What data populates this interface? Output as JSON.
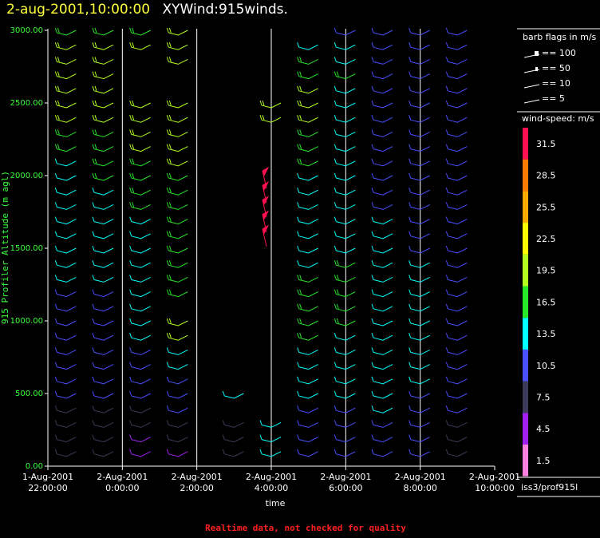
{
  "header": {
    "date": "2-aug-2001,10:00:00",
    "title": "XYWind:915winds."
  },
  "note": "Realtime data, not checked for quality",
  "legend": {
    "barb_title": "barb flags in m/s",
    "barbs": [
      "== 100",
      "== 50",
      "== 10",
      "== 5"
    ],
    "speed_title": "wind-speed: m/s",
    "source": "iss3/prof915l",
    "colorbar": [
      {
        "label": "31.5",
        "color": "#ff1050"
      },
      {
        "label": "28.5",
        "color": "#ff7a00"
      },
      {
        "label": "25.5",
        "color": "#ffaa00"
      },
      {
        "label": "22.5",
        "color": "#ffff00"
      },
      {
        "label": "19.5",
        "color": "#b4ff1e"
      },
      {
        "label": "16.5",
        "color": "#28e628"
      },
      {
        "label": "13.5",
        "color": "#00ffff"
      },
      {
        "label": "10.5",
        "color": "#4a50ff"
      },
      {
        "label": "7.5",
        "color": "#3c3c5a"
      },
      {
        "label": "4.5",
        "color": "#a020f0"
      },
      {
        "label": "1.5",
        "color": "#ff80dc"
      }
    ]
  },
  "chart_data": {
    "type": "scatter",
    "subtype": "wind-barb time-height",
    "xlabel": "time",
    "ylabel": "915 Profiler Altitude (m agl)",
    "ylim": [
      0,
      3000
    ],
    "y_ticks": [
      "0.00",
      "500.00",
      "1000.00",
      "1500.00",
      "2000.00",
      "2500.00",
      "3000.00"
    ],
    "x_ticks": [
      [
        "1-Aug-2001",
        "22:00:00"
      ],
      [
        "2-Aug-2001",
        "0:00:00"
      ],
      [
        "2-Aug-2001",
        "2:00:00"
      ],
      [
        "2-Aug-2001",
        "4:00:00"
      ],
      [
        "2-Aug-2001",
        "6:00:00"
      ],
      [
        "2-Aug-2001",
        "8:00:00"
      ],
      [
        "2-Aug-2001",
        "10:00:00"
      ]
    ],
    "x_hours": [
      22,
      24,
      26,
      28,
      30,
      32,
      34
    ],
    "xlim_hours": [
      22,
      34
    ],
    "grid_x": true,
    "profiles": [
      {
        "hour": 22.5,
        "barbs": [
          [
            3000,
            17
          ],
          [
            2900,
            18
          ],
          [
            2800,
            18
          ],
          [
            2700,
            18
          ],
          [
            2600,
            18
          ],
          [
            2500,
            18
          ],
          [
            2400,
            18
          ],
          [
            2300,
            17
          ],
          [
            2200,
            16
          ],
          [
            2100,
            14
          ],
          [
            2000,
            14
          ],
          [
            1900,
            14
          ],
          [
            1800,
            14
          ],
          [
            1700,
            13
          ],
          [
            1600,
            13
          ],
          [
            1500,
            13
          ],
          [
            1400,
            12
          ],
          [
            1300,
            12
          ],
          [
            1200,
            11
          ],
          [
            1100,
            11
          ],
          [
            1000,
            11
          ],
          [
            900,
            10
          ],
          [
            800,
            10
          ],
          [
            700,
            10
          ],
          [
            600,
            10
          ],
          [
            500,
            10
          ],
          [
            400,
            8
          ],
          [
            300,
            8
          ],
          [
            200,
            8
          ],
          [
            100,
            8
          ]
        ]
      },
      {
        "hour": 23.5,
        "barbs": [
          [
            3000,
            17
          ],
          [
            2900,
            18
          ],
          [
            2800,
            18
          ],
          [
            2700,
            18
          ],
          [
            2600,
            18
          ],
          [
            2500,
            18
          ],
          [
            2400,
            18
          ],
          [
            2300,
            17
          ],
          [
            2200,
            17
          ],
          [
            2100,
            16
          ],
          [
            2000,
            15
          ],
          [
            1900,
            14
          ],
          [
            1800,
            14
          ],
          [
            1700,
            13
          ],
          [
            1600,
            13
          ],
          [
            1500,
            13
          ],
          [
            1400,
            12
          ],
          [
            1300,
            12
          ],
          [
            1200,
            11
          ],
          [
            1100,
            11
          ],
          [
            1000,
            11
          ],
          [
            900,
            10
          ],
          [
            800,
            10
          ],
          [
            700,
            10
          ],
          [
            600,
            10
          ],
          [
            500,
            9
          ],
          [
            400,
            8
          ],
          [
            300,
            8
          ],
          [
            200,
            8
          ],
          [
            100,
            8
          ]
        ]
      },
      {
        "hour": 24.5,
        "barbs": [
          [
            3000,
            17
          ],
          [
            2900,
            18
          ],
          [
            2500,
            19
          ],
          [
            2400,
            19
          ],
          [
            2300,
            18
          ],
          [
            2200,
            18
          ],
          [
            2100,
            17
          ],
          [
            2000,
            16
          ],
          [
            1900,
            15
          ],
          [
            1800,
            15
          ],
          [
            1700,
            14
          ],
          [
            1600,
            14
          ],
          [
            1500,
            14
          ],
          [
            1400,
            13
          ],
          [
            1300,
            13
          ],
          [
            1200,
            13
          ],
          [
            1100,
            14
          ],
          [
            1000,
            14
          ],
          [
            900,
            13
          ],
          [
            800,
            11
          ],
          [
            700,
            11
          ],
          [
            600,
            10
          ],
          [
            500,
            10
          ],
          [
            400,
            8
          ],
          [
            300,
            7
          ],
          [
            200,
            5
          ],
          [
            100,
            5
          ]
        ]
      },
      {
        "hour": 25.5,
        "barbs": [
          [
            3000,
            18
          ],
          [
            2900,
            18
          ],
          [
            2800,
            18
          ],
          [
            2500,
            19
          ],
          [
            2400,
            19
          ],
          [
            2300,
            19
          ],
          [
            2200,
            18
          ],
          [
            2100,
            18
          ],
          [
            2000,
            17
          ],
          [
            1900,
            16
          ],
          [
            1800,
            16
          ],
          [
            1700,
            16
          ],
          [
            1600,
            17
          ],
          [
            1500,
            17
          ],
          [
            1400,
            17
          ],
          [
            1300,
            17
          ],
          [
            1200,
            17
          ],
          [
            1000,
            18
          ],
          [
            900,
            18
          ],
          [
            800,
            14
          ],
          [
            700,
            12
          ],
          [
            600,
            11
          ],
          [
            500,
            10
          ],
          [
            400,
            9
          ],
          [
            300,
            8
          ],
          [
            200,
            6
          ],
          [
            100,
            5
          ]
        ]
      },
      {
        "hour": 27.0,
        "barbs": [
          [
            500,
            14
          ],
          [
            300,
            8
          ],
          [
            200,
            6
          ],
          [
            100,
            6
          ]
        ]
      },
      {
        "hour": 28.0,
        "barbs": [
          [
            2500,
            18
          ],
          [
            2400,
            18
          ],
          [
            2000,
            30
          ],
          [
            1900,
            30
          ],
          [
            1800,
            30
          ],
          [
            1700,
            30
          ],
          [
            1600,
            30
          ],
          [
            300,
            12
          ],
          [
            200,
            12
          ],
          [
            100,
            12
          ]
        ]
      },
      {
        "hour": 29.0,
        "barbs": [
          [
            2900,
            12
          ],
          [
            2800,
            15
          ],
          [
            2700,
            17
          ],
          [
            2600,
            18
          ],
          [
            2500,
            18
          ],
          [
            2400,
            18
          ],
          [
            2300,
            17
          ],
          [
            2200,
            16
          ],
          [
            2100,
            16
          ],
          [
            2000,
            14
          ],
          [
            1900,
            14
          ],
          [
            1800,
            14
          ],
          [
            1700,
            13
          ],
          [
            1600,
            12
          ],
          [
            1500,
            13
          ],
          [
            1400,
            14
          ],
          [
            1300,
            15
          ],
          [
            1200,
            15
          ],
          [
            1100,
            15
          ],
          [
            1000,
            15
          ],
          [
            900,
            15
          ],
          [
            800,
            14
          ],
          [
            700,
            13
          ],
          [
            600,
            12
          ],
          [
            500,
            12
          ],
          [
            400,
            11
          ],
          [
            300,
            11
          ],
          [
            200,
            11
          ],
          [
            100,
            10
          ]
        ]
      },
      {
        "hour": 30.0,
        "barbs": [
          [
            3000,
            11
          ],
          [
            2900,
            12
          ],
          [
            2800,
            14
          ],
          [
            2700,
            15
          ],
          [
            2600,
            14
          ],
          [
            2500,
            14
          ],
          [
            2400,
            13
          ],
          [
            2300,
            13
          ],
          [
            2200,
            12
          ],
          [
            2100,
            12
          ],
          [
            2000,
            12
          ],
          [
            1900,
            12
          ],
          [
            1800,
            13
          ],
          [
            1700,
            14
          ],
          [
            1600,
            14
          ],
          [
            1500,
            14
          ],
          [
            1400,
            15
          ],
          [
            1300,
            15
          ],
          [
            1200,
            15
          ],
          [
            1100,
            15
          ],
          [
            1000,
            15
          ],
          [
            900,
            14
          ],
          [
            800,
            14
          ],
          [
            700,
            13
          ],
          [
            600,
            12
          ],
          [
            500,
            12
          ],
          [
            400,
            11
          ],
          [
            300,
            11
          ],
          [
            200,
            11
          ],
          [
            100,
            10
          ]
        ]
      },
      {
        "hour": 31.0,
        "barbs": [
          [
            3000,
            11
          ],
          [
            2900,
            11
          ],
          [
            2800,
            11
          ],
          [
            2700,
            11
          ],
          [
            2600,
            11
          ],
          [
            2500,
            11
          ],
          [
            2400,
            11
          ],
          [
            2300,
            11
          ],
          [
            2200,
            11
          ],
          [
            2100,
            11
          ],
          [
            2000,
            11
          ],
          [
            1900,
            11
          ],
          [
            1800,
            11
          ],
          [
            1700,
            12
          ],
          [
            1600,
            12
          ],
          [
            1500,
            13
          ],
          [
            1400,
            14
          ],
          [
            1300,
            14
          ],
          [
            1200,
            14
          ],
          [
            1100,
            14
          ],
          [
            1000,
            14
          ],
          [
            900,
            14
          ],
          [
            800,
            13
          ],
          [
            700,
            13
          ],
          [
            600,
            13
          ],
          [
            500,
            12
          ],
          [
            400,
            12
          ],
          [
            300,
            11
          ],
          [
            200,
            11
          ],
          [
            100,
            11
          ]
        ]
      },
      {
        "hour": 32.0,
        "barbs": [
          [
            3000,
            10
          ],
          [
            2900,
            10
          ],
          [
            2800,
            10
          ],
          [
            2700,
            10
          ],
          [
            2600,
            10
          ],
          [
            2500,
            10
          ],
          [
            2400,
            10
          ],
          [
            2300,
            10
          ],
          [
            2200,
            10
          ],
          [
            2100,
            10
          ],
          [
            2000,
            10
          ],
          [
            1900,
            10
          ],
          [
            1800,
            10
          ],
          [
            1700,
            10
          ],
          [
            1600,
            10
          ],
          [
            1500,
            11
          ],
          [
            1400,
            12
          ],
          [
            1300,
            12
          ],
          [
            1200,
            12
          ],
          [
            1100,
            12
          ],
          [
            1000,
            12
          ],
          [
            900,
            12
          ],
          [
            800,
            12
          ],
          [
            700,
            12
          ],
          [
            600,
            12
          ],
          [
            500,
            11
          ],
          [
            400,
            11
          ],
          [
            300,
            11
          ],
          [
            200,
            11
          ],
          [
            100,
            11
          ]
        ]
      },
      {
        "hour": 33.0,
        "barbs": [
          [
            3000,
            9
          ],
          [
            2900,
            10
          ],
          [
            2800,
            10
          ],
          [
            2700,
            10
          ],
          [
            2600,
            10
          ],
          [
            2500,
            10
          ],
          [
            2400,
            10
          ],
          [
            2300,
            10
          ],
          [
            2200,
            10
          ],
          [
            2100,
            10
          ],
          [
            2000,
            10
          ],
          [
            1900,
            10
          ],
          [
            1800,
            10
          ],
          [
            1700,
            10
          ],
          [
            1600,
            10
          ],
          [
            1500,
            10
          ],
          [
            1400,
            11
          ],
          [
            1300,
            11
          ],
          [
            1200,
            11
          ],
          [
            1100,
            11
          ],
          [
            1000,
            11
          ],
          [
            900,
            11
          ],
          [
            800,
            11
          ],
          [
            700,
            10
          ],
          [
            600,
            10
          ],
          [
            500,
            10
          ],
          [
            400,
            9
          ],
          [
            300,
            8
          ],
          [
            200,
            8
          ],
          [
            100,
            8
          ]
        ]
      }
    ]
  }
}
